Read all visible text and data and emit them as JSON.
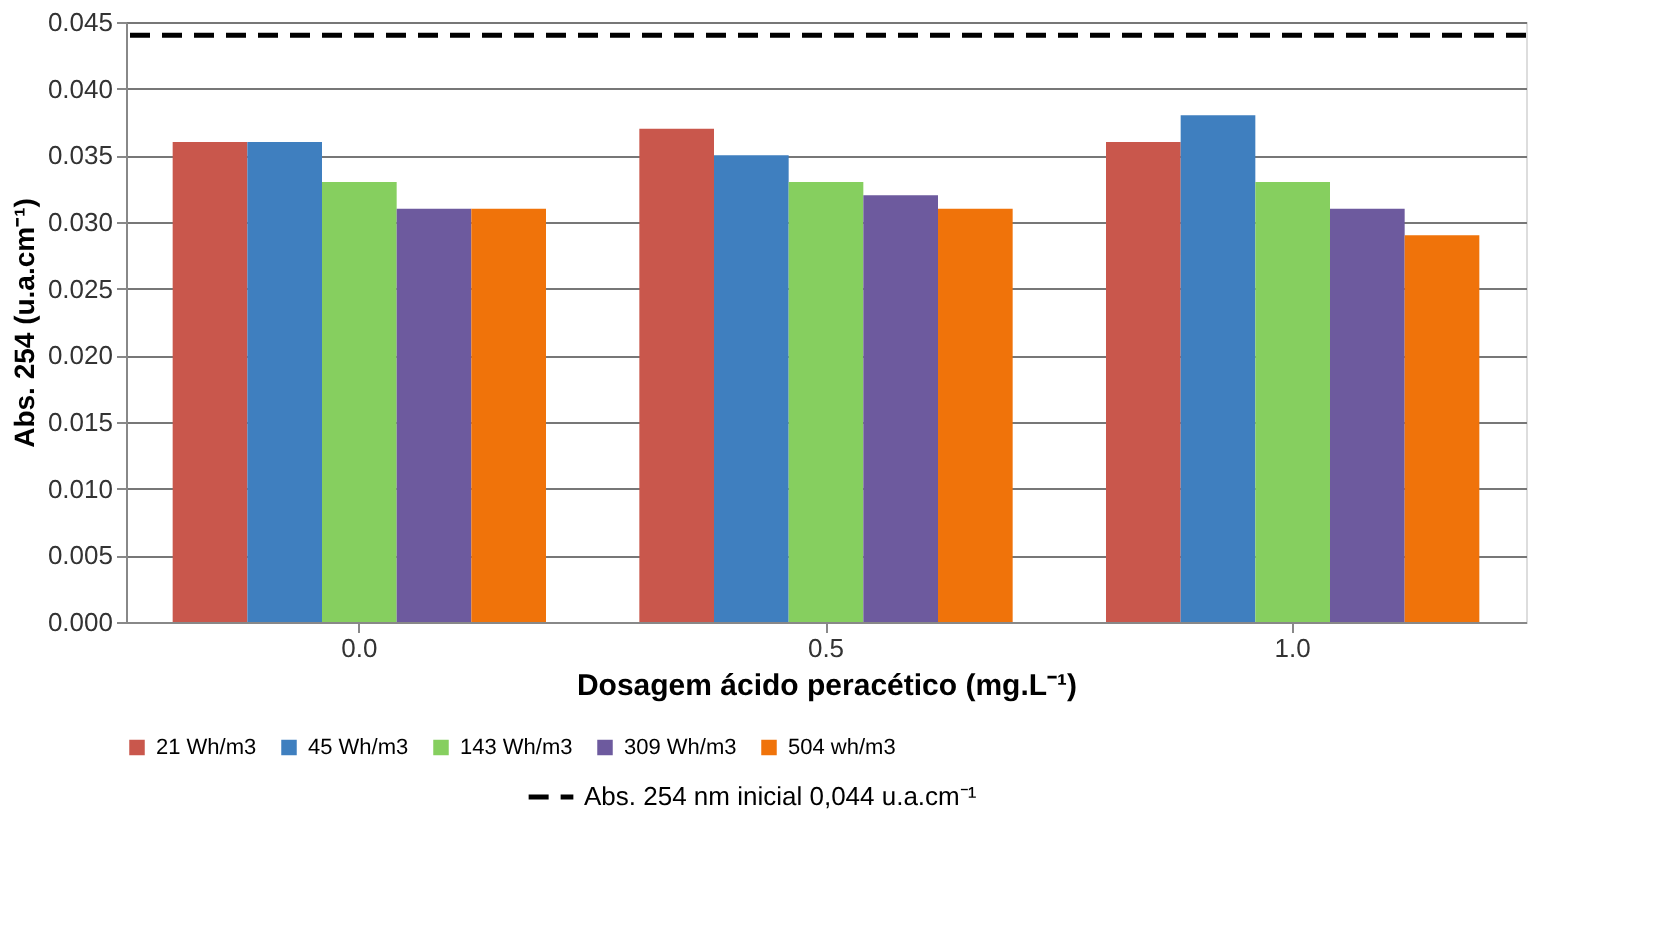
{
  "chart_data": {
    "type": "bar",
    "xlabel": "Dosagem ácido peracético (mg.L⁻¹)",
    "ylabel": "Abs. 254 (u.a.cm⁻¹)",
    "categories": [
      "0.0",
      "0.5",
      "1.0"
    ],
    "series": [
      {
        "name": "21 Wh/m3",
        "color": "#c9574c",
        "values": [
          0.036,
          0.037,
          0.036
        ]
      },
      {
        "name": "45 Wh/m3",
        "color": "#3f7fbf",
        "values": [
          0.036,
          0.035,
          0.038
        ]
      },
      {
        "name": "143 Wh/m3",
        "color": "#86cf5f",
        "values": [
          0.033,
          0.033,
          0.033
        ]
      },
      {
        "name": "309 Wh/m3",
        "color": "#6d5a9e",
        "values": [
          0.031,
          0.032,
          0.031
        ]
      },
      {
        "name": "504 wh/m3",
        "color": "#f0730a",
        "values": [
          0.031,
          0.031,
          0.029
        ]
      }
    ],
    "ylim": [
      0,
      0.045
    ],
    "yticks": [
      {
        "value": 0,
        "label": "0.000"
      },
      {
        "value": 0.005,
        "label": "0.005"
      },
      {
        "value": 0.01,
        "label": "0.010"
      },
      {
        "value": 0.015,
        "label": "0.015"
      },
      {
        "value": 0.02,
        "label": "0.020"
      },
      {
        "value": 0.025,
        "label": "0.025"
      },
      {
        "value": 0.03,
        "label": "0.030"
      },
      {
        "value": 0.035,
        "label": "0.035"
      },
      {
        "value": 0.04,
        "label": "0.040"
      },
      {
        "value": 0.045,
        "label": "0.045"
      }
    ],
    "ref_lines": [
      {
        "axis": "y",
        "value": 0.044,
        "label": "Abs. 254 nm inicial 0,044 u.a.cm⁻¹",
        "color": "#000000",
        "line_style": "dashed"
      }
    ],
    "grid": "y",
    "legend": "bottom"
  }
}
